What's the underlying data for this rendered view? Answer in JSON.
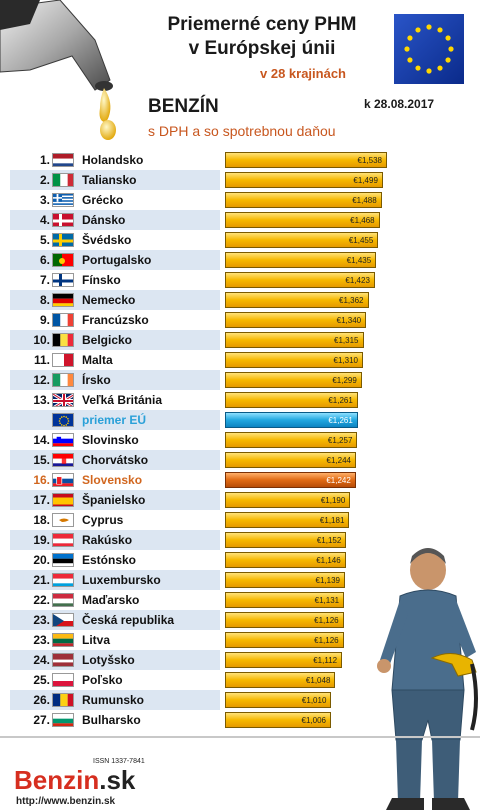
{
  "header": {
    "title_line1": "Priemerné ceny PHM",
    "title_line2": "v Európskej únii",
    "subtitle": "v 28 krajinách",
    "fuel": "BENZÍN",
    "date": "k 28.08.2017",
    "note": "s DPH a so spotrebnou daňou"
  },
  "footer": {
    "issn": "ISSN 1337-7841",
    "logo_main": "Benzin",
    "logo_domain": ".sk",
    "url": "http://www.benzin.sk"
  },
  "colors": {
    "bar": "#f6b800",
    "eu_bar": "#22a8e0",
    "sk_bar": "#e06a14",
    "accent": "#c8571f"
  },
  "chart_data": {
    "type": "bar",
    "orientation": "horizontal",
    "unit": "€",
    "xlim": [
      0,
      1.538
    ],
    "rows": [
      {
        "rank": "1.",
        "country": "Holandsko",
        "value": "€1,538",
        "v": 1.538,
        "flag": "nl"
      },
      {
        "rank": "2.",
        "country": "Taliansko",
        "value": "€1,499",
        "v": 1.499,
        "flag": "it"
      },
      {
        "rank": "3.",
        "country": "Grécko",
        "value": "€1,488",
        "v": 1.488,
        "flag": "gr"
      },
      {
        "rank": "4.",
        "country": "Dánsko",
        "value": "€1,468",
        "v": 1.468,
        "flag": "dk"
      },
      {
        "rank": "5.",
        "country": "Švédsko",
        "value": "€1,455",
        "v": 1.455,
        "flag": "se"
      },
      {
        "rank": "6.",
        "country": "Portugalsko",
        "value": "€1,435",
        "v": 1.435,
        "flag": "pt"
      },
      {
        "rank": "7.",
        "country": "Fínsko",
        "value": "€1,423",
        "v": 1.423,
        "flag": "fi"
      },
      {
        "rank": "8.",
        "country": "Nemecko",
        "value": "€1,362",
        "v": 1.362,
        "flag": "de"
      },
      {
        "rank": "9.",
        "country": "Francúzsko",
        "value": "€1,340",
        "v": 1.34,
        "flag": "fr"
      },
      {
        "rank": "10.",
        "country": "Belgicko",
        "value": "€1,315",
        "v": 1.315,
        "flag": "be"
      },
      {
        "rank": "11.",
        "country": "Malta",
        "value": "€1,310",
        "v": 1.31,
        "flag": "mt"
      },
      {
        "rank": "12.",
        "country": "Írsko",
        "value": "€1,299",
        "v": 1.299,
        "flag": "ie"
      },
      {
        "rank": "13.",
        "country": "Veľká Británia",
        "value": "€1,261",
        "v": 1.261,
        "flag": "gb"
      },
      {
        "rank": "",
        "country": "priemer EÚ",
        "value": "€1,261",
        "v": 1.261,
        "flag": "eu",
        "kind": "eu"
      },
      {
        "rank": "14.",
        "country": "Slovinsko",
        "value": "€1,257",
        "v": 1.257,
        "flag": "si"
      },
      {
        "rank": "15.",
        "country": "Chorvátsko",
        "value": "€1,244",
        "v": 1.244,
        "flag": "hr"
      },
      {
        "rank": "16.",
        "country": "Slovensko",
        "value": "€1,242",
        "v": 1.242,
        "flag": "sk",
        "kind": "sk"
      },
      {
        "rank": "17.",
        "country": "Španielsko",
        "value": "€1,190",
        "v": 1.19,
        "flag": "es"
      },
      {
        "rank": "18.",
        "country": "Cyprus",
        "value": "€1,181",
        "v": 1.181,
        "flag": "cy"
      },
      {
        "rank": "19.",
        "country": "Rakúsko",
        "value": "€1,152",
        "v": 1.152,
        "flag": "at"
      },
      {
        "rank": "20.",
        "country": "Estónsko",
        "value": "€1,146",
        "v": 1.146,
        "flag": "ee"
      },
      {
        "rank": "21.",
        "country": "Luxembursko",
        "value": "€1,139",
        "v": 1.139,
        "flag": "lu"
      },
      {
        "rank": "22.",
        "country": "Maďarsko",
        "value": "€1,131",
        "v": 1.131,
        "flag": "hu"
      },
      {
        "rank": "23.",
        "country": "Česká republika",
        "value": "€1,126",
        "v": 1.126,
        "flag": "cz"
      },
      {
        "rank": "23.",
        "country": "Litva",
        "value": "€1,126",
        "v": 1.126,
        "flag": "lt"
      },
      {
        "rank": "24.",
        "country": "Lotyšsko",
        "value": "€1,112",
        "v": 1.112,
        "flag": "lv"
      },
      {
        "rank": "25.",
        "country": "Poľsko",
        "value": "€1,048",
        "v": 1.048,
        "flag": "pl"
      },
      {
        "rank": "26.",
        "country": "Rumunsko",
        "value": "€1,010",
        "v": 1.01,
        "flag": "ro"
      },
      {
        "rank": "27.",
        "country": "Bulharsko",
        "value": "€1,006",
        "v": 1.006,
        "flag": "bg"
      }
    ]
  }
}
